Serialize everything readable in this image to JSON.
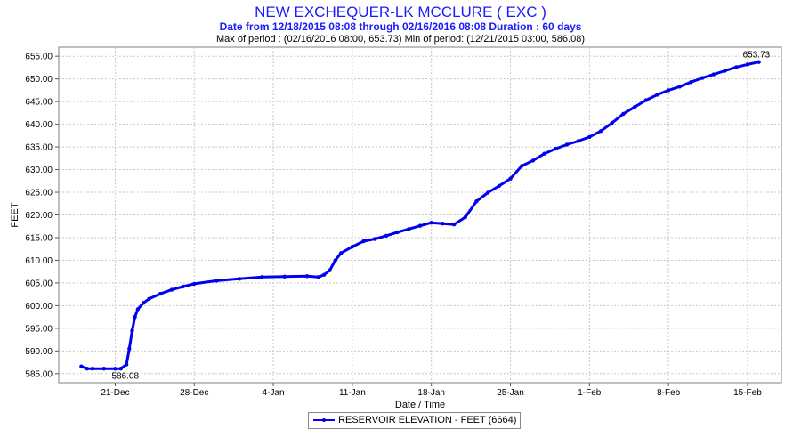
{
  "header": {
    "title": "NEW EXCHEQUER-LK MCCLURE ( EXC )",
    "subtitle": "Date from 12/18/2015 08:08 through 02/16/2016 08:08 Duration : 60 days",
    "period_info": "Max of period : (02/16/2016 08:00, 653.73)  Min of period: (12/21/2015 03:00,  586.08)"
  },
  "chart_data": {
    "type": "line",
    "title": "NEW EXCHEQUER-LK MCCLURE ( EXC )",
    "xlabel": "Date / Time",
    "ylabel": "FEET",
    "xlim": [
      "2015-12-16",
      "2016-02-18"
    ],
    "ylim": [
      583.0,
      657.0
    ],
    "yticks": [
      "585.00",
      "590.00",
      "595.00",
      "600.00",
      "605.00",
      "610.00",
      "615.00",
      "620.00",
      "625.00",
      "630.00",
      "635.00",
      "640.00",
      "645.00",
      "650.00",
      "655.00"
    ],
    "xticks": [
      {
        "date": "2015-12-21",
        "label": "21-Dec"
      },
      {
        "date": "2015-12-28",
        "label": "28-Dec"
      },
      {
        "date": "2016-01-04",
        "label": "4-Jan"
      },
      {
        "date": "2016-01-11",
        "label": "11-Jan"
      },
      {
        "date": "2016-01-18",
        "label": "18-Jan"
      },
      {
        "date": "2016-01-25",
        "label": "25-Jan"
      },
      {
        "date": "2016-02-01",
        "label": "1-Feb"
      },
      {
        "date": "2016-02-08",
        "label": "8-Feb"
      },
      {
        "date": "2016-02-15",
        "label": "15-Feb"
      }
    ],
    "grid": true,
    "legend_position": "bottom",
    "series": [
      {
        "name": "RESERVOIR ELEVATION - FEET (6664)",
        "color": "#0000ee",
        "x": [
          "2015-12-18",
          "2015-12-18 12:00",
          "2015-12-19",
          "2015-12-20",
          "2015-12-21",
          "2015-12-21 12:00",
          "2015-12-22",
          "2015-12-22 06:00",
          "2015-12-22 12:00",
          "2015-12-22 18:00",
          "2015-12-23",
          "2015-12-23 12:00",
          "2015-12-24",
          "2015-12-25",
          "2015-12-26",
          "2015-12-27",
          "2015-12-28",
          "2015-12-30",
          "2016-01-01",
          "2016-01-03",
          "2016-01-05",
          "2016-01-07",
          "2016-01-08",
          "2016-01-08 12:00",
          "2016-01-09",
          "2016-01-09 12:00",
          "2016-01-10",
          "2016-01-11",
          "2016-01-12",
          "2016-01-13",
          "2016-01-14",
          "2016-01-15",
          "2016-01-16",
          "2016-01-17",
          "2016-01-18",
          "2016-01-19",
          "2016-01-20",
          "2016-01-21",
          "2016-01-22",
          "2016-01-23",
          "2016-01-24",
          "2016-01-25",
          "2016-01-26",
          "2016-01-27",
          "2016-01-28",
          "2016-01-29",
          "2016-01-30",
          "2016-01-31",
          "2016-02-01",
          "2016-02-02",
          "2016-02-03",
          "2016-02-04",
          "2016-02-05",
          "2016-02-06",
          "2016-02-07",
          "2016-02-08",
          "2016-02-09",
          "2016-02-10",
          "2016-02-11",
          "2016-02-12",
          "2016-02-13",
          "2016-02-14",
          "2016-02-15",
          "2016-02-16"
        ],
        "y": [
          586.6,
          586.1,
          586.1,
          586.1,
          586.08,
          586.1,
          587.0,
          590.5,
          594.5,
          597.5,
          599.2,
          600.6,
          601.5,
          602.6,
          603.5,
          604.2,
          604.8,
          605.5,
          605.9,
          606.3,
          606.4,
          606.5,
          606.3,
          606.8,
          607.8,
          610.0,
          611.6,
          613.0,
          614.2,
          614.7,
          615.4,
          616.2,
          616.9,
          617.6,
          618.3,
          618.1,
          617.9,
          619.5,
          623.0,
          624.9,
          626.4,
          628.0,
          630.8,
          632.0,
          633.5,
          634.6,
          635.5,
          636.3,
          637.2,
          638.5,
          640.3,
          642.3,
          643.8,
          645.3,
          646.5,
          647.5,
          648.3,
          649.3,
          650.2,
          651.0,
          651.8,
          652.6,
          653.2,
          653.73
        ]
      }
    ],
    "annotations": [
      {
        "text": "653.73",
        "x": "2016-02-16",
        "y": 653.73
      },
      {
        "text": "586.08",
        "x": "2015-12-21",
        "y": 586.08
      }
    ]
  }
}
